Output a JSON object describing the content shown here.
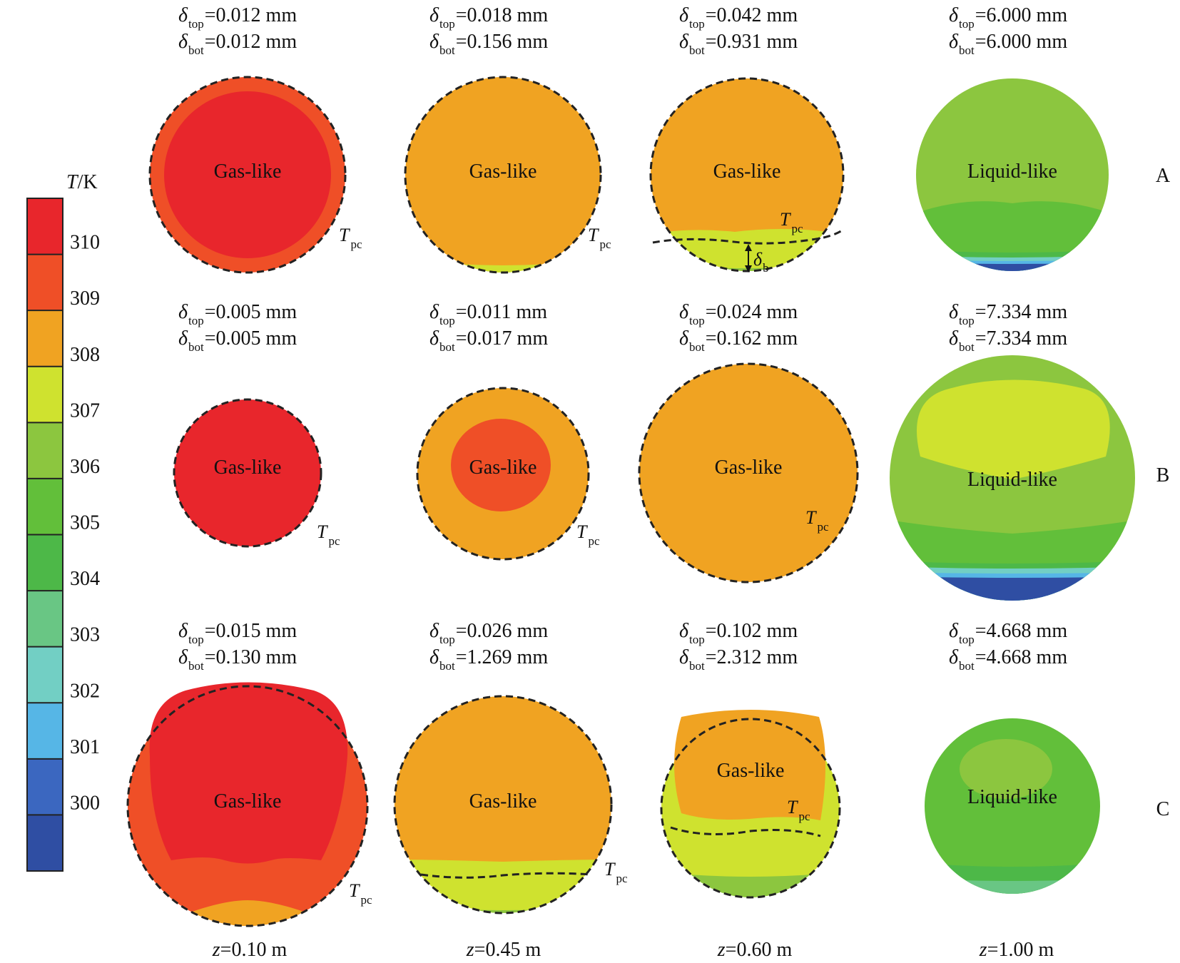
{
  "colorbar": {
    "title_italic": "T",
    "title_rest": "/K",
    "ticks": [
      "310",
      "309",
      "308",
      "307",
      "306",
      "305",
      "304",
      "303",
      "302",
      "301",
      "300"
    ],
    "colors": [
      "#e8262c",
      "#ef4f27",
      "#f0a322",
      "#cfe22f",
      "#8cc63f",
      "#62bf3a",
      "#4db848",
      "#69c684",
      "#72cfc4",
      "#56b6e6",
      "#3b67c0",
      "#2f4ea3"
    ]
  },
  "labels": {
    "gas": "Gas-like",
    "liquid": "Liquid-like",
    "tpc_main": "T",
    "tpc_sub": "pc",
    "delta": "δ",
    "sub_top": "top",
    "sub_bot": "bot",
    "sub_b": "b"
  },
  "rows": [
    {
      "id": "A",
      "cells": [
        {
          "top": "=0.012 mm",
          "bot": "=0.012 mm",
          "label": "Gas-like"
        },
        {
          "top": "=0.018 mm",
          "bot": "=0.156 mm",
          "label": "Gas-like"
        },
        {
          "top": "=0.042 mm",
          "bot": "=0.931 mm",
          "label": "Gas-like"
        },
        {
          "top": "=6.000 mm",
          "bot": "=6.000 mm",
          "label": "Liquid-like"
        }
      ]
    },
    {
      "id": "B",
      "cells": [
        {
          "top": "=0.005 mm",
          "bot": "=0.005 mm",
          "label": "Gas-like"
        },
        {
          "top": "=0.011 mm",
          "bot": "=0.017 mm",
          "label": "Gas-like"
        },
        {
          "top": "=0.024 mm",
          "bot": "=0.162 mm",
          "label": "Gas-like"
        },
        {
          "top": "=7.334 mm",
          "bot": "=7.334 mm",
          "label": "Liquid-like"
        }
      ]
    },
    {
      "id": "C",
      "cells": [
        {
          "top": "=0.015 mm",
          "bot": "=0.130 mm",
          "label": "Gas-like"
        },
        {
          "top": "=0.026 mm",
          "bot": "=1.269 mm",
          "label": "Gas-like"
        },
        {
          "top": "=0.102 mm",
          "bot": "=2.312 mm",
          "label": "Gas-like"
        },
        {
          "top": "=4.668 mm",
          "bot": "=4.668 mm",
          "label": "Liquid-like"
        }
      ]
    }
  ],
  "columns": [
    {
      "z_italic": "z",
      "z_rest": "=0.10 m"
    },
    {
      "z_italic": "z",
      "z_rest": "=0.45 m"
    },
    {
      "z_italic": "z",
      "z_rest": "=0.60 m"
    },
    {
      "z_italic": "z",
      "z_rest": "=1.00 m"
    }
  ]
}
